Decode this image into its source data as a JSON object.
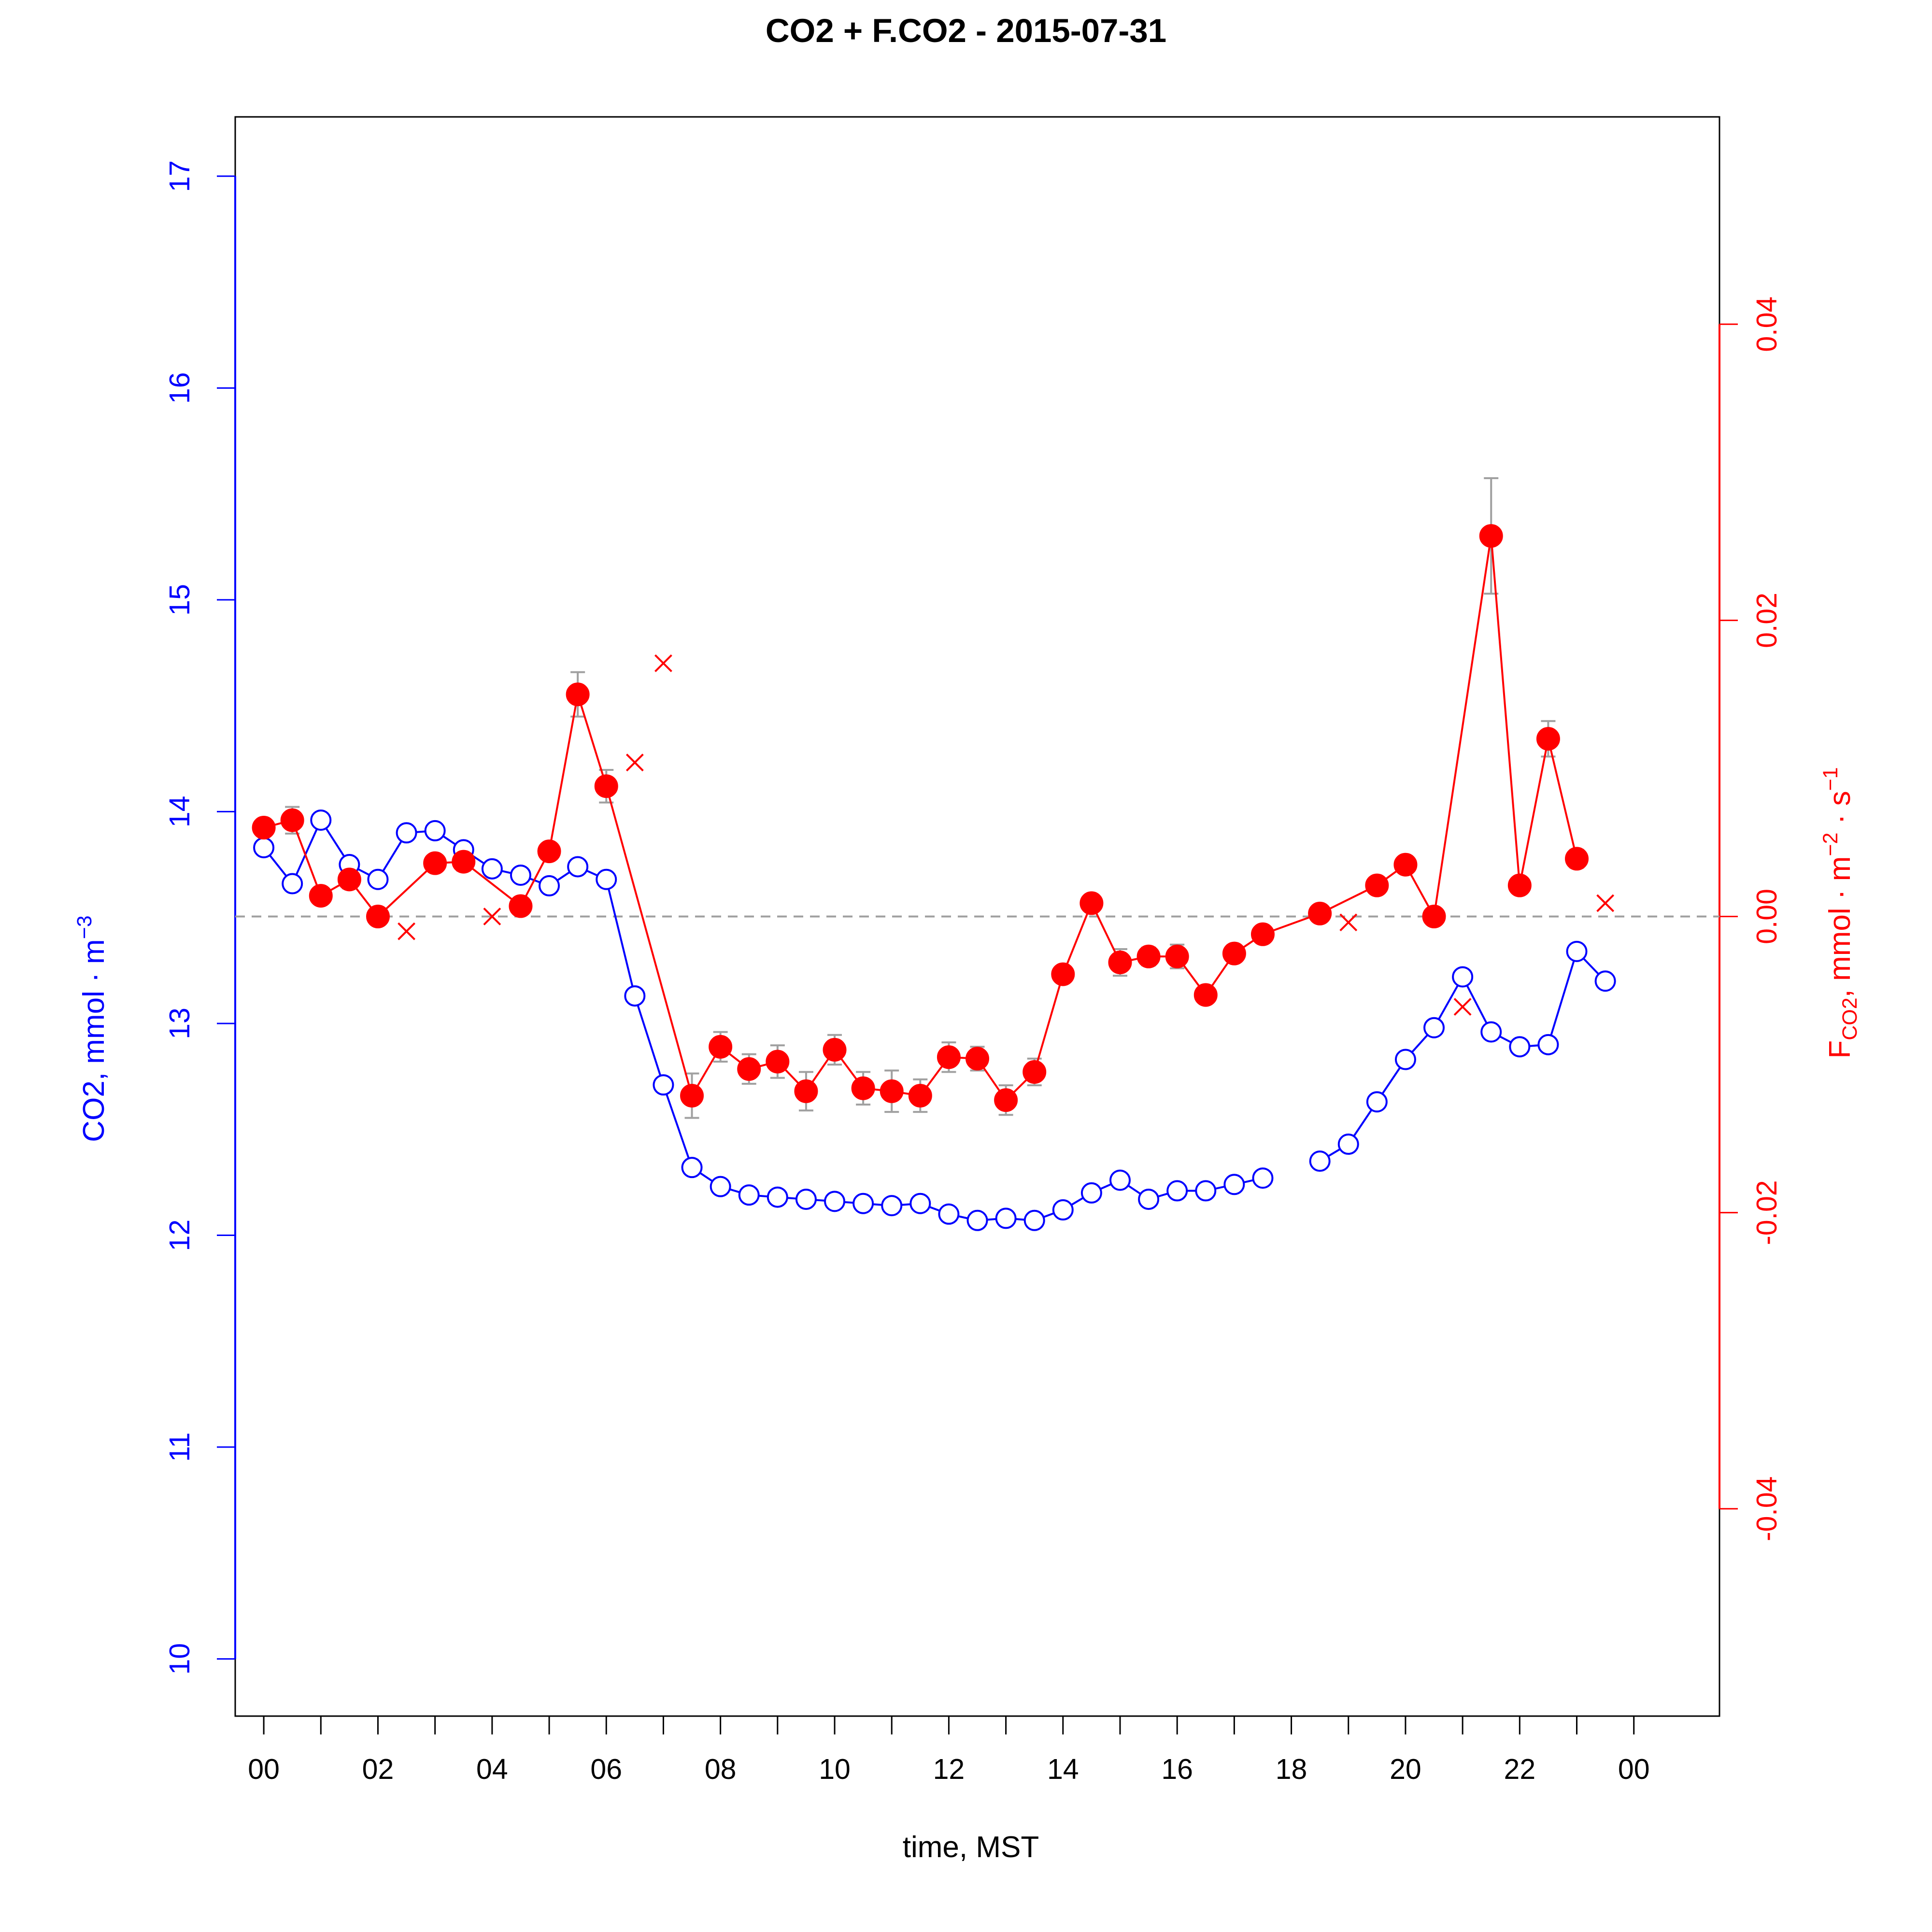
{
  "chart_data": {
    "type": "line",
    "title": "CO2 + F.CO2 -  2015-07-31",
    "xlabel": "time, MST",
    "ylabel_left": {
      "main": "CO2, mmol",
      "sep": "·",
      "unit": "m",
      "exp": "−3"
    },
    "ylabel_right": {
      "f": "F",
      "sub": "CO2",
      "main": ", mmol",
      "sep1": "·",
      "unit1": "m",
      "exp1": "−2",
      "sep2": "·",
      "unit2": "s",
      "exp2": "−1"
    },
    "x_ticks": [
      "00",
      "",
      "02",
      "",
      "04",
      "",
      "06",
      "",
      "08",
      "",
      "10",
      "",
      "12",
      "",
      "14",
      "",
      "16",
      "",
      "18",
      "",
      "20",
      "",
      "22",
      "",
      "00"
    ],
    "xlim": [
      -0.5,
      25.5
    ],
    "ylim_left": [
      9.73,
      17.28
    ],
    "yticks_left": [
      "10",
      "11",
      "12",
      "13",
      "14",
      "15",
      "16",
      "17"
    ],
    "ylim_right": [
      -0.054,
      0.054
    ],
    "yticks_right": [
      "-0.04",
      "-0.02",
      "0.00",
      "0.02",
      "0.04"
    ],
    "zero_line": 0,
    "colors": {
      "co2": "#0000ff",
      "flux": "#ff0000",
      "error_bars": "#a0a0a0",
      "zero_line": "#a0a0a0"
    },
    "series": [
      {
        "id": "co2",
        "axis": "left",
        "marker": "open-circle",
        "x": [
          0,
          0.5,
          1,
          1.5,
          2,
          2.5,
          3,
          3.5,
          4,
          4.5,
          5,
          5.5,
          6,
          6.5,
          7,
          7.5,
          8,
          8.5,
          9,
          9.5,
          10,
          10.5,
          11,
          11.5,
          12,
          12.5,
          13,
          13.5,
          14,
          14.5,
          15,
          15.5,
          16,
          16.5,
          17,
          17.5,
          18,
          18.5,
          19,
          19.5,
          20,
          20.5,
          21,
          21.5,
          22,
          22.5,
          23,
          23.5
        ],
        "values": [
          13.83,
          13.66,
          13.96,
          13.75,
          13.68,
          13.9,
          13.91,
          13.82,
          13.73,
          13.7,
          13.65,
          13.74,
          13.68,
          13.13,
          12.71,
          12.32,
          12.23,
          12.19,
          12.18,
          12.17,
          12.16,
          12.15,
          12.14,
          12.15,
          12.1,
          12.07,
          12.08,
          12.07,
          12.12,
          12.2,
          12.26,
          12.17,
          12.21,
          12.21,
          12.24,
          12.27,
          null,
          12.35,
          12.43,
          12.63,
          12.83,
          12.98,
          13.22,
          12.96,
          12.89,
          12.9,
          13.34,
          13.2
        ]
      },
      {
        "id": "flux",
        "axis": "right",
        "marker": "filled-circle",
        "x": [
          0,
          0.5,
          1,
          1.5,
          2,
          3,
          3.5,
          4.5,
          5,
          5.5,
          6,
          7.5,
          8,
          8.5,
          9,
          9.5,
          10,
          10.5,
          11,
          11.5,
          12,
          12.5,
          13,
          13.5,
          14,
          14.5,
          15,
          15.5,
          16,
          16.5,
          17,
          17.5,
          18.5,
          19.5,
          20,
          20.5,
          21.5,
          22,
          22.5,
          23
        ],
        "values": [
          0.006,
          0.0065,
          0.0014,
          0.0025,
          0.0,
          0.0036,
          0.0037,
          0.0007,
          0.0044,
          0.015,
          0.0088,
          -0.0121,
          -0.0088,
          -0.0103,
          -0.0098,
          -0.0118,
          -0.009,
          -0.0116,
          -0.0118,
          -0.0121,
          -0.0095,
          -0.0096,
          -0.0124,
          -0.0105,
          -0.0039,
          0.0009,
          -0.0031,
          -0.0027,
          -0.0027,
          -0.0053,
          -0.0025,
          -0.0012,
          0.0002,
          0.0021,
          0.0035,
          0.0,
          0.0257,
          0.0021,
          0.012,
          0.0039
        ],
        "error": [
          0,
          0.0009,
          0.0005,
          0.0006,
          0,
          0.0005,
          0.0006,
          0,
          0.0004,
          0.0015,
          0.0011,
          0.0015,
          0.001,
          0.001,
          0.0011,
          0.0013,
          0.001,
          0.0011,
          0.0014,
          0.0011,
          0.001,
          0.0008,
          0.001,
          0.0009,
          0.0005,
          0,
          0.0009,
          0.0006,
          0.0008,
          0.0005,
          0.0004,
          0,
          0,
          0.0005,
          0.0005,
          0,
          0.0039,
          0,
          0.0012,
          0.0006
        ]
      },
      {
        "id": "flux_rejected",
        "axis": "right",
        "marker": "cross",
        "x": [
          2.5,
          4,
          6.5,
          7,
          19,
          21,
          23.5
        ],
        "values": [
          -0.001,
          0.0,
          0.0104,
          0.0171,
          -0.0004,
          -0.0061,
          0.0009
        ]
      }
    ]
  }
}
